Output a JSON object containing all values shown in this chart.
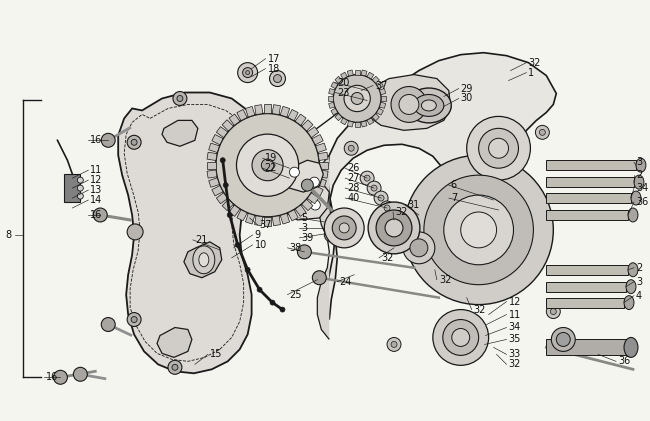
{
  "bg_color": "#f5f5f0",
  "line_color": "#1a1a1a",
  "text_color": "#111111",
  "figsize": [
    6.5,
    4.21
  ],
  "dpi": 100,
  "font_size": 6.0,
  "line_width": 0.8
}
